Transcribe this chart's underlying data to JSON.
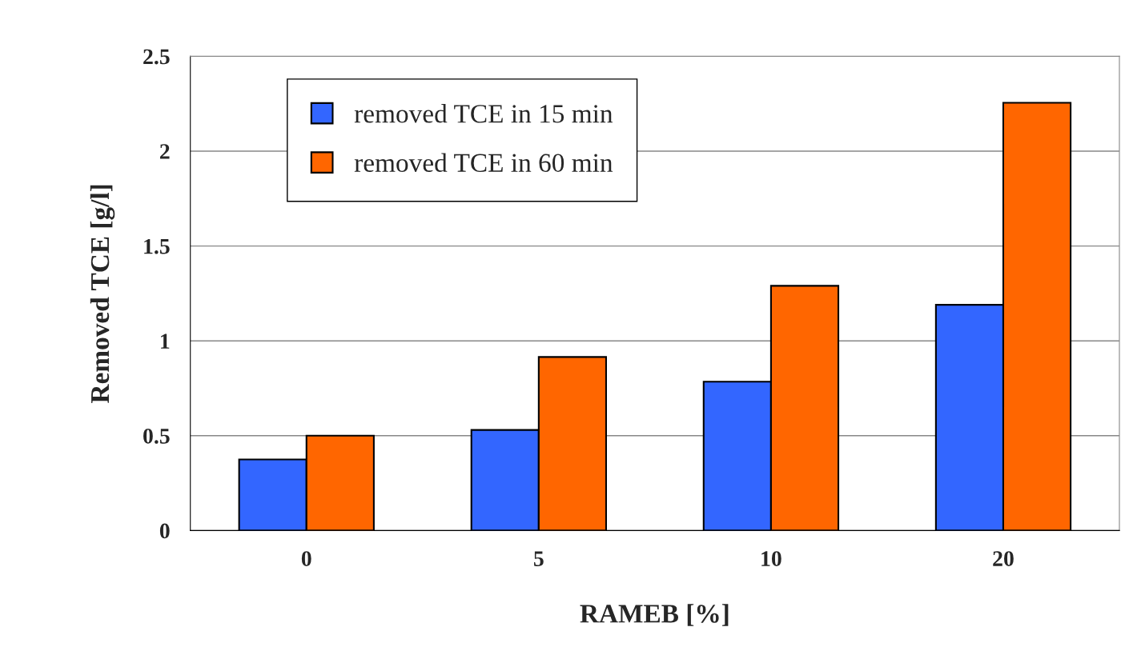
{
  "chart_data": {
    "type": "bar",
    "xlabel": "RAMEB [%]",
    "ylabel": "Removed TCE [g/l]",
    "categories": [
      "0",
      "5",
      "10",
      "20"
    ],
    "series": [
      {
        "name": "removed TCE in 15 min",
        "color": "#3366ff",
        "values": [
          0.375,
          0.53,
          0.785,
          1.19
        ]
      },
      {
        "name": "removed TCE in 60 min",
        "color": "#ff6600",
        "values": [
          0.5,
          0.915,
          1.29,
          2.255
        ]
      }
    ],
    "ylim": [
      0,
      2.5
    ],
    "yticks": [
      0,
      0.5,
      1,
      1.5,
      2,
      2.5
    ],
    "grid": "y",
    "legend": "top left"
  }
}
